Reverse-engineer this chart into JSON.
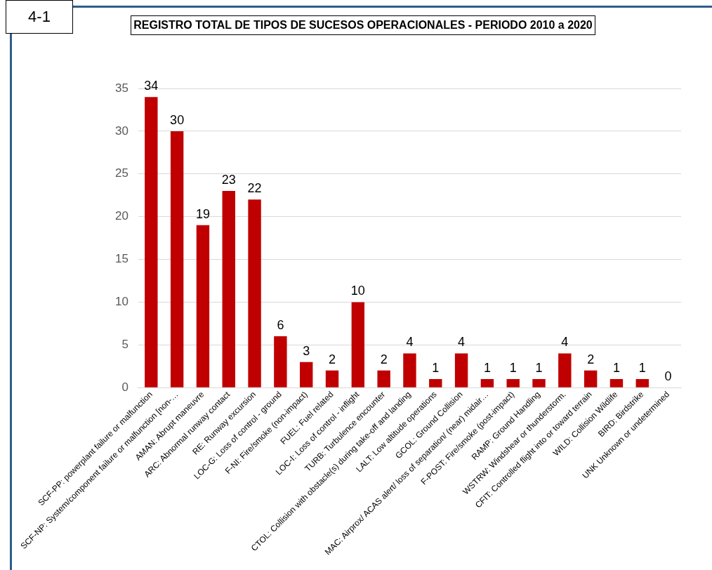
{
  "chart_data": {
    "type": "bar",
    "title": "REGISTRO TOTAL DE TIPOS DE SUCESOS OPERACIONALES - PERIODO 2010 a 2020",
    "annotations": [
      "4-1"
    ],
    "categories": [
      "SCF-PP: powerplant failure or malfunction",
      "SCF-NP: System/component failure or malfunction [non-…",
      "AMAN: Abrupt maneuvre",
      "ARC: Abnormal runway contact",
      "RE: Runway excursion",
      "LOC-G: Loss of control - ground",
      "F-NI: Fire/smoke (non-impact)",
      "FUEL: Fuel related",
      "LOC-I: Loss of control - inflight",
      "TURB: Turbulence encounter",
      "CTOL: Collision with obstacle(s) during take-off and landing",
      "LALT: Low altitude operations",
      "GCOL: Ground Collision",
      "MAC: Airprox/ ACAS alert/ loss of separation/ (near) midair…",
      "F-POST: Fire/smoke (post-impact)",
      "RAMP: Ground Handling",
      "WSTRW: Windshear or thunderstorm.",
      "CFIT: Controlled flight into or toward terrain",
      "WILD: Collision Wildlife",
      "BIRD: Birdstrike",
      "UNK Unknown or undetermined"
    ],
    "values": [
      34,
      30,
      19,
      23,
      22,
      6,
      3,
      2,
      10,
      2,
      4,
      1,
      4,
      1,
      1,
      1,
      4,
      2,
      1,
      1,
      0
    ],
    "color": "#c00000",
    "ylim": [
      0,
      35
    ],
    "yticks": [
      0,
      5,
      10,
      15,
      20,
      25,
      30,
      35
    ],
    "grid": "y",
    "data_labels": true
  }
}
